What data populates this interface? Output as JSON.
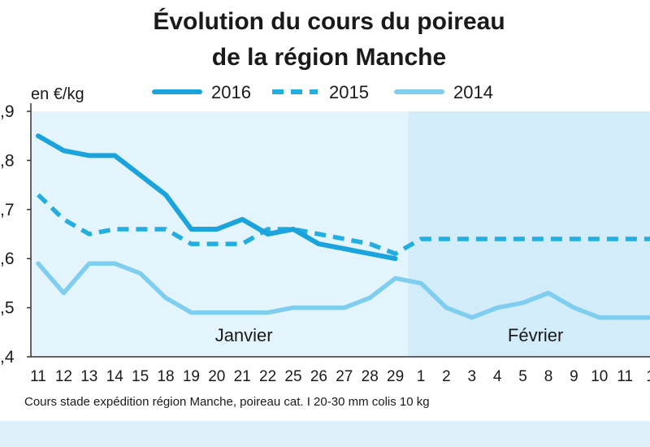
{
  "colors": {
    "s2016": "#1aa3dc",
    "s2015": "#22aee0",
    "s2014": "#7fcdef",
    "panel_january": "#e4f4fc",
    "panel_february": "#d3ecf9",
    "bottom_band": "#dff0fa"
  },
  "chart_data": {
    "type": "line",
    "title": "Évolution du cours du poireau de la région Manche",
    "title_lines": [
      "Évolution du cours du poireau",
      "de la région Manche"
    ],
    "ylabel": "en €/kg",
    "ylim": [
      0.4,
      0.9
    ],
    "yticks": [
      0.4,
      0.5,
      0.6,
      0.7,
      0.8,
      0.9
    ],
    "ytick_labels": [
      ",4",
      ",5",
      ",6",
      ",7",
      ",8",
      ",9"
    ],
    "categories": [
      "11",
      "12",
      "13",
      "14",
      "15",
      "18",
      "19",
      "20",
      "21",
      "22",
      "25",
      "26",
      "27",
      "28",
      "29",
      "1",
      "2",
      "3",
      "4",
      "5",
      "8",
      "9",
      "10",
      "11",
      "1"
    ],
    "months": [
      {
        "label": "Janvier",
        "from": 0,
        "to": 14
      },
      {
        "label": "Février",
        "from": 15,
        "to": 24
      }
    ],
    "legend_position": "top",
    "grid": false,
    "series": [
      {
        "name": "2016",
        "style": "solid",
        "color_key": "s2016",
        "values": [
          0.85,
          0.82,
          0.81,
          0.81,
          0.77,
          0.73,
          0.66,
          0.66,
          0.68,
          0.65,
          0.66,
          0.63,
          0.62,
          0.61,
          0.6,
          null,
          null,
          null,
          null,
          null,
          null,
          null,
          null,
          null,
          null
        ]
      },
      {
        "name": "2015",
        "style": "dashed",
        "color_key": "s2015",
        "values": [
          0.73,
          0.68,
          0.65,
          0.66,
          0.66,
          0.66,
          0.63,
          0.63,
          0.63,
          0.66,
          0.66,
          0.65,
          0.64,
          0.63,
          0.61,
          0.64,
          0.64,
          0.64,
          0.64,
          0.64,
          0.64,
          0.64,
          0.64,
          0.64,
          0.64
        ]
      },
      {
        "name": "2014",
        "style": "solid",
        "color_key": "s2014",
        "values": [
          0.59,
          0.53,
          0.59,
          0.59,
          0.57,
          0.52,
          0.49,
          0.49,
          0.49,
          0.49,
          0.5,
          0.5,
          0.5,
          0.52,
          0.56,
          0.55,
          0.5,
          0.48,
          0.5,
          0.51,
          0.53,
          0.5,
          0.48,
          0.48,
          0.48
        ]
      }
    ],
    "source": "Cours stade expédition région Manche, poireau cat. I 20-30 mm colis 10 kg"
  }
}
